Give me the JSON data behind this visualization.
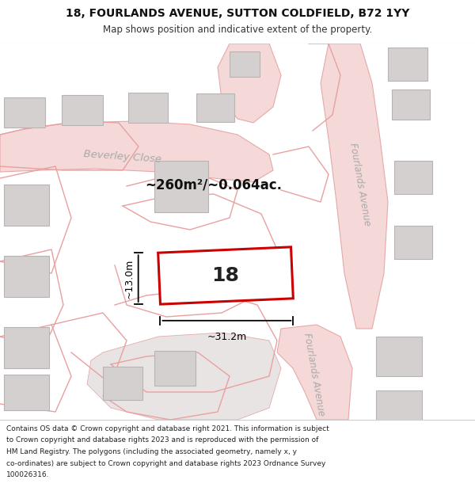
{
  "title": "18, FOURLANDS AVENUE, SUTTON COLDFIELD, B72 1YY",
  "subtitle": "Map shows position and indicative extent of the property.",
  "footer_lines": [
    "Contains OS data © Crown copyright and database right 2021. This information is subject",
    "to Crown copyright and database rights 2023 and is reproduced with the permission of",
    "HM Land Registry. The polygons (including the associated geometry, namely x, y",
    "co-ordinates) are subject to Crown copyright and database rights 2023 Ordnance Survey",
    "100026316."
  ],
  "map_bg": "#f0eeee",
  "white_bg": "#ffffff",
  "road_fill": "#f5d8d8",
  "road_edge": "#e8a8a8",
  "building_fill": "#d4d0d0",
  "building_edge": "#b8b4b4",
  "plot_fill": "#ffffff",
  "plot_edge": "#cc0000",
  "dim_color": "#000000",
  "text_dark": "#111111",
  "text_grey": "#aaaaaa",
  "area_text": "~260m²/~0.064ac.",
  "width_text": "~31.2m",
  "height_text": "~13.0m",
  "number_text": "18",
  "street1_text": "Beverley Close",
  "street2_top_text": "Fourlands Avenue",
  "street2_bot_text": "Fourlands Avenue",
  "title_fontsize": 10,
  "subtitle_fontsize": 8.5,
  "footer_fontsize": 6.5,
  "street_fontsize": 9.5,
  "area_fontsize": 12,
  "number_fontsize": 18,
  "dim_fontsize": 9
}
